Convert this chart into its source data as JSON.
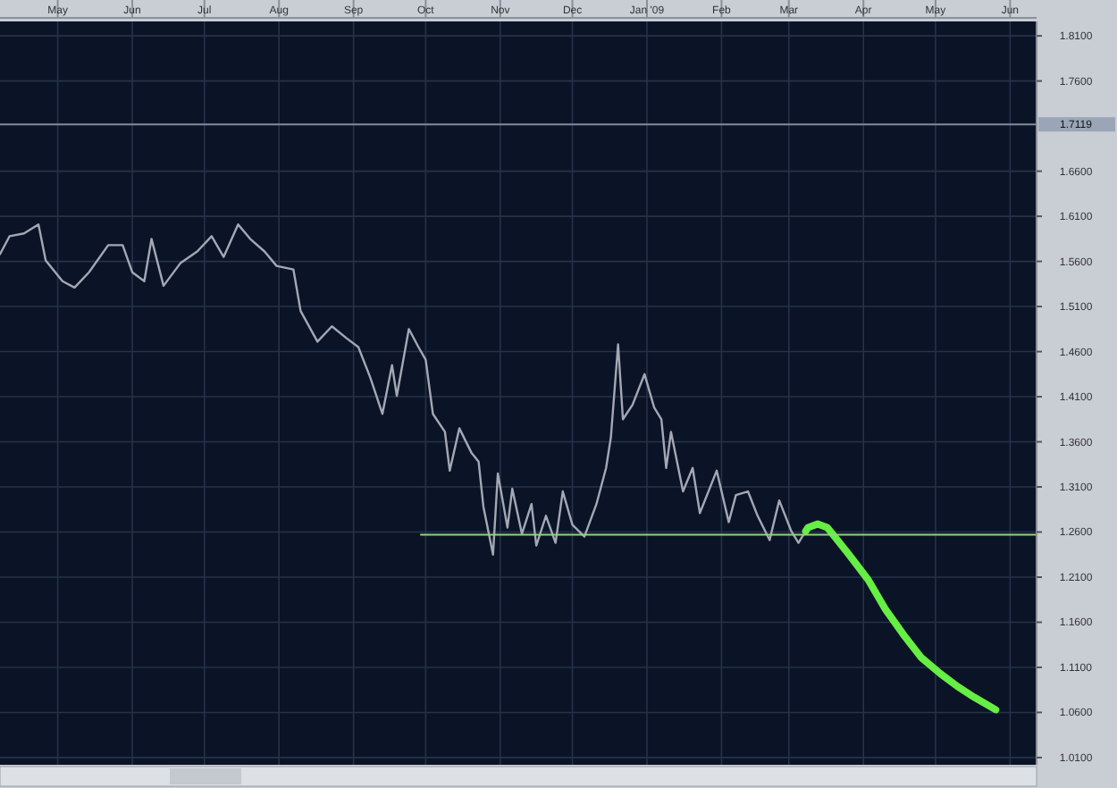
{
  "chart_data": {
    "type": "line",
    "xlim": [
      "2008-04-07",
      "2009-06-12"
    ],
    "xticks": [
      {
        "value": "2008-05-01",
        "label": "May"
      },
      {
        "value": "2008-06-01",
        "label": "Jun"
      },
      {
        "value": "2008-07-01",
        "label": "Jul"
      },
      {
        "value": "2008-08-01",
        "label": "Aug"
      },
      {
        "value": "2008-09-01",
        "label": "Sep"
      },
      {
        "value": "2008-10-01",
        "label": "Oct"
      },
      {
        "value": "2008-11-01",
        "label": "Nov"
      },
      {
        "value": "2008-12-01",
        "label": "Dec"
      },
      {
        "value": "2009-01-01",
        "label": "Jan '09"
      },
      {
        "value": "2009-02-01",
        "label": "Feb"
      },
      {
        "value": "2009-03-01",
        "label": "Mar"
      },
      {
        "value": "2009-04-01",
        "label": "Apr"
      },
      {
        "value": "2009-05-01",
        "label": "May"
      },
      {
        "value": "2009-06-01",
        "label": "Jun"
      }
    ],
    "ylim": [
      1.002,
      1.826
    ],
    "yticks": [
      {
        "value": 1.01,
        "label": "1.0100"
      },
      {
        "value": 1.06,
        "label": "1.0600"
      },
      {
        "value": 1.11,
        "label": "1.1100"
      },
      {
        "value": 1.16,
        "label": "1.1600"
      },
      {
        "value": 1.21,
        "label": "1.2100"
      },
      {
        "value": 1.26,
        "label": "1.2600"
      },
      {
        "value": 1.31,
        "label": "1.3100"
      },
      {
        "value": 1.36,
        "label": "1.3600"
      },
      {
        "value": 1.41,
        "label": "1.4100"
      },
      {
        "value": 1.46,
        "label": "1.4600"
      },
      {
        "value": 1.51,
        "label": "1.5100"
      },
      {
        "value": 1.56,
        "label": "1.5600"
      },
      {
        "value": 1.61,
        "label": "1.6100"
      },
      {
        "value": 1.66,
        "label": "1.6600"
      },
      {
        "value": 1.76,
        "label": "1.7600"
      },
      {
        "value": 1.81,
        "label": "1.8100"
      }
    ],
    "grid": true,
    "ref_lines": [
      {
        "axis": "y",
        "value": 1.7119,
        "label": "1.7119",
        "color": "#7f8c9c"
      }
    ],
    "series": [
      {
        "color": "#a4a8b4",
        "x": [
          "2008-04-07",
          "2008-04-11",
          "2008-04-17",
          "2008-04-23",
          "2008-04-26",
          "2008-05-03",
          "2008-05-08",
          "2008-05-14",
          "2008-05-22",
          "2008-05-28",
          "2008-06-01",
          "2008-06-06",
          "2008-06-09",
          "2008-06-14",
          "2008-06-21",
          "2008-06-28",
          "2008-07-04",
          "2008-07-09",
          "2008-07-15",
          "2008-07-20",
          "2008-07-26",
          "2008-07-31",
          "2008-08-07",
          "2008-08-10",
          "2008-08-17",
          "2008-08-23",
          "2008-08-29",
          "2008-09-03",
          "2008-09-08",
          "2008-09-13",
          "2008-09-17",
          "2008-09-19",
          "2008-09-24",
          "2008-09-28",
          "2008-10-01",
          "2008-10-04",
          "2008-10-09",
          "2008-10-11",
          "2008-10-15",
          "2008-10-20",
          "2008-10-23",
          "2008-10-25",
          "2008-10-29",
          "2008-10-31",
          "2008-11-04",
          "2008-11-06",
          "2008-11-10",
          "2008-11-14",
          "2008-11-16",
          "2008-11-20",
          "2008-11-24",
          "2008-11-27",
          "2008-12-01",
          "2008-12-06",
          "2008-12-11",
          "2008-12-15",
          "2008-12-17",
          "2008-12-20",
          "2008-12-22",
          "2008-12-26",
          "2008-12-31",
          "2009-01-04",
          "2009-01-07",
          "2009-01-09",
          "2009-01-11",
          "2009-01-16",
          "2009-01-20",
          "2009-01-23",
          "2009-01-30",
          "2009-02-04",
          "2009-02-07",
          "2009-02-12",
          "2009-02-16",
          "2009-02-21",
          "2009-02-25",
          "2009-03-02",
          "2009-03-05",
          "2009-03-08"
        ],
        "values": [
          1.568,
          1.588,
          1.591,
          1.601,
          1.561,
          1.538,
          1.531,
          1.548,
          1.578,
          1.578,
          1.548,
          1.538,
          1.585,
          1.533,
          1.558,
          1.571,
          1.588,
          1.565,
          1.601,
          1.585,
          1.571,
          1.555,
          1.551,
          1.505,
          1.471,
          1.488,
          1.475,
          1.465,
          1.431,
          1.391,
          1.445,
          1.411,
          1.485,
          1.465,
          1.451,
          1.391,
          1.371,
          1.328,
          1.375,
          1.348,
          1.338,
          1.288,
          1.235,
          1.325,
          1.265,
          1.308,
          1.258,
          1.291,
          1.245,
          1.278,
          1.248,
          1.305,
          1.268,
          1.255,
          1.291,
          1.331,
          1.365,
          1.468,
          1.385,
          1.401,
          1.435,
          1.398,
          1.385,
          1.331,
          1.371,
          1.305,
          1.331,
          1.281,
          1.328,
          1.271,
          1.301,
          1.305,
          1.278,
          1.251,
          1.295,
          1.261,
          1.248,
          1.261
        ]
      },
      {
        "color": "#66ee44",
        "x": [
          "2009-03-08",
          "2009-03-09",
          "2009-03-13",
          "2009-03-17",
          "2009-03-20",
          "2009-03-26",
          "2009-04-03",
          "2009-04-10",
          "2009-04-18",
          "2009-04-25",
          "2009-05-03",
          "2009-05-10",
          "2009-05-17",
          "2009-05-26"
        ],
        "values": [
          1.261,
          1.265,
          1.269,
          1.265,
          1.255,
          1.235,
          1.207,
          1.175,
          1.145,
          1.121,
          1.103,
          1.089,
          1.077,
          1.063
        ]
      },
      {
        "color": "#8fd47a",
        "x": [
          "2008-09-29",
          "2009-06-12"
        ],
        "values": [
          1.257,
          1.257
        ]
      }
    ]
  }
}
